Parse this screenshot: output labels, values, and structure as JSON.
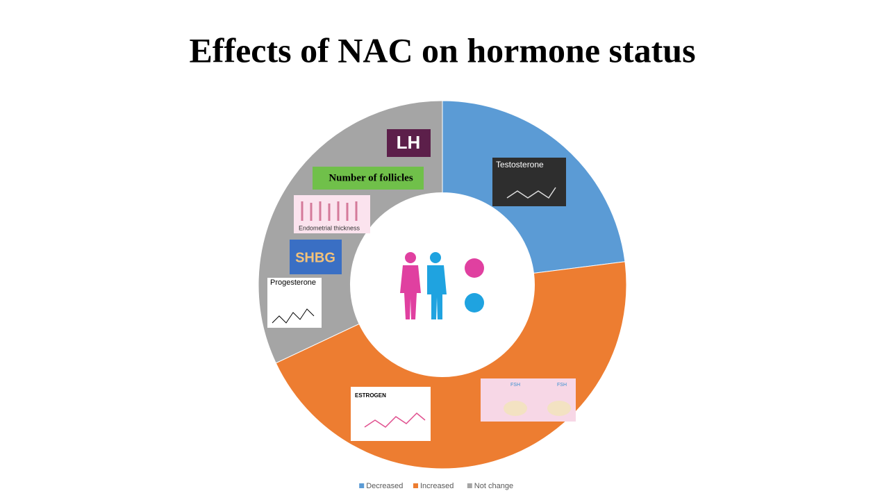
{
  "chart_data": {
    "type": "pie",
    "title": "Effects of NAC on hormone status",
    "categories": [
      "Decreased",
      "Increased",
      "Not change"
    ],
    "values": [
      23,
      45,
      32
    ],
    "colors": [
      "#5b9bd5",
      "#ed7d31",
      "#a5a5a5"
    ],
    "hole": 0.5,
    "legend": "bottom",
    "annotations": [
      "LH",
      "Number of follicles",
      "Testosterone",
      "Endometrial thickness",
      "SHBG",
      "Progesterone",
      "ESTROGEN",
      "FSH"
    ]
  }
}
